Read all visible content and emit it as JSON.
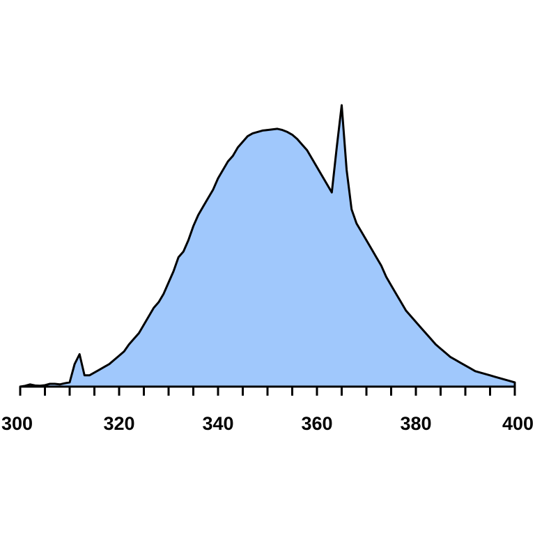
{
  "chart_data": {
    "type": "area",
    "title": "",
    "xlabel": "",
    "ylabel": "",
    "xlim": [
      300,
      400
    ],
    "ylim": [
      0,
      1.0
    ],
    "grid": false,
    "legend": "none",
    "xticks": {
      "major": [
        300,
        320,
        340,
        360,
        380,
        400
      ],
      "labels": [
        "300",
        "320",
        "340",
        "360",
        "380",
        "400"
      ],
      "minor_step": 5
    },
    "fill_color": "#a0c8fc",
    "line_color": "#000000",
    "series": [
      {
        "x": [
          300,
          301,
          302,
          303,
          304,
          305,
          306,
          307,
          308,
          309,
          310,
          311,
          312,
          313,
          314,
          315,
          316,
          317,
          318,
          319,
          320,
          321,
          322,
          323,
          324,
          325,
          326,
          327,
          328,
          329,
          330,
          331,
          332,
          333,
          334,
          335,
          336,
          337,
          338,
          339,
          340,
          341,
          342,
          343,
          344,
          345,
          346,
          347,
          348,
          349,
          350,
          351,
          352,
          353,
          354,
          355,
          356,
          357,
          358,
          359,
          360,
          361,
          362,
          363,
          364,
          365,
          366,
          367,
          368,
          369,
          370,
          371,
          372,
          373,
          374,
          375,
          376,
          377,
          378,
          379,
          380,
          381,
          382,
          383,
          384,
          385,
          386,
          387,
          388,
          389,
          390,
          391,
          392,
          393,
          394,
          395,
          396,
          397,
          398,
          399,
          400
        ],
        "y": [
          0.0,
          0.003,
          0.008,
          0.004,
          0.003,
          0.005,
          0.01,
          0.01,
          0.008,
          0.012,
          0.015,
          0.08,
          0.115,
          0.04,
          0.04,
          0.05,
          0.06,
          0.07,
          0.08,
          0.095,
          0.11,
          0.125,
          0.15,
          0.17,
          0.19,
          0.22,
          0.25,
          0.28,
          0.3,
          0.33,
          0.37,
          0.41,
          0.46,
          0.48,
          0.52,
          0.57,
          0.61,
          0.64,
          0.67,
          0.7,
          0.74,
          0.77,
          0.8,
          0.82,
          0.85,
          0.87,
          0.89,
          0.9,
          0.905,
          0.91,
          0.912,
          0.914,
          0.916,
          0.912,
          0.905,
          0.895,
          0.88,
          0.86,
          0.84,
          0.81,
          0.78,
          0.75,
          0.72,
          0.69,
          0.85,
          1.0,
          0.77,
          0.63,
          0.58,
          0.55,
          0.52,
          0.49,
          0.46,
          0.43,
          0.39,
          0.36,
          0.33,
          0.3,
          0.27,
          0.25,
          0.23,
          0.21,
          0.19,
          0.17,
          0.15,
          0.135,
          0.12,
          0.105,
          0.095,
          0.085,
          0.075,
          0.065,
          0.055,
          0.05,
          0.045,
          0.04,
          0.035,
          0.03,
          0.025,
          0.02,
          0.015
        ]
      }
    ]
  }
}
